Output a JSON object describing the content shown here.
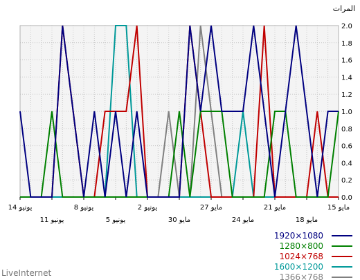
{
  "chart_data": {
    "type": "line",
    "ylabel": "المرات",
    "ylim": [
      0,
      2
    ],
    "yticks": [
      "0.0",
      "0.2",
      "0.4",
      "0.6",
      "0.8",
      "1.0",
      "1.2",
      "1.4",
      "1.6",
      "1.8",
      "2.0"
    ],
    "x_count": 31,
    "x_tick_labels": [
      {
        "i": 0,
        "label": "15 مايو"
      },
      {
        "i": 3,
        "label": "18 مايو"
      },
      {
        "i": 6,
        "label": "21 مايو"
      },
      {
        "i": 9,
        "label": "24 مايو"
      },
      {
        "i": 12,
        "label": "27 مايو"
      },
      {
        "i": 15,
        "label": "30 مايو"
      },
      {
        "i": 18,
        "label": "2 يونيو"
      },
      {
        "i": 21,
        "label": "5 يونيو"
      },
      {
        "i": 24,
        "label": "8 يونيو"
      },
      {
        "i": 27,
        "label": "11 يونيو"
      },
      {
        "i": 30,
        "label": "14 يونيو"
      }
    ],
    "grid": true,
    "legend_position": "bottom-right",
    "series": [
      {
        "name": "1920×1080",
        "color": "#000080",
        "values": [
          1,
          1,
          0,
          1,
          2,
          1,
          0,
          1,
          2,
          1,
          1,
          1,
          2,
          1,
          2,
          0,
          0,
          0,
          0,
          1,
          0,
          1,
          0,
          1,
          0,
          1,
          2,
          0,
          0,
          0,
          1
        ]
      },
      {
        "name": "1280×800",
        "color": "#008000",
        "values": [
          1,
          0,
          0,
          0,
          0,
          1,
          1,
          0,
          0,
          0,
          0,
          1,
          1,
          1,
          0,
          1,
          0,
          0,
          0,
          0,
          0,
          0,
          0,
          0,
          0,
          0,
          0,
          1,
          0,
          0,
          0
        ]
      },
      {
        "name": "1024×768",
        "color": "#C00000",
        "values": [
          0,
          0,
          1,
          0,
          0,
          0,
          0,
          2,
          0,
          0,
          0,
          0,
          0,
          1,
          2,
          0,
          0,
          0,
          0,
          2,
          1,
          1,
          1,
          0,
          0,
          1,
          2,
          0,
          0,
          0,
          0
        ]
      },
      {
        "name": "1600×1200",
        "color": "#009999",
        "values": [
          0,
          0,
          0,
          0,
          0,
          0,
          0,
          0,
          0,
          1,
          0,
          0,
          0,
          0,
          0,
          0,
          0,
          0,
          0,
          0,
          2,
          2,
          0,
          0,
          0,
          0,
          0,
          0,
          0,
          0,
          0
        ]
      },
      {
        "name": "1366×768",
        "color": "#808080",
        "values": [
          0,
          0,
          0,
          0,
          0,
          0,
          0,
          0,
          0,
          0,
          0,
          0,
          1,
          2,
          0,
          0,
          1,
          0,
          0,
          0,
          0,
          0,
          0,
          0,
          0,
          0,
          0,
          0,
          0,
          0,
          0
        ]
      }
    ]
  },
  "branding": "LiveInternet"
}
